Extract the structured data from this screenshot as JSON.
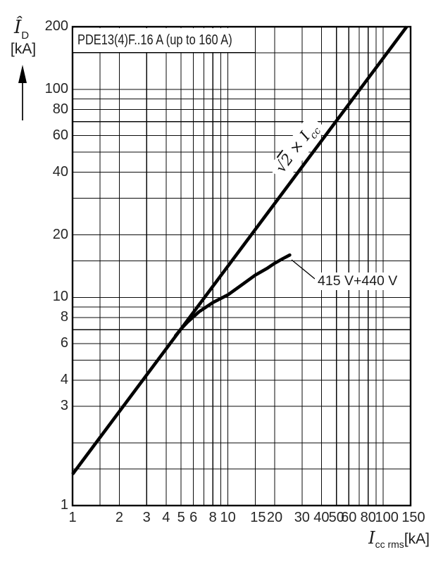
{
  "title": "PDE13(4)F..16 A (up to 160 A)",
  "axes": {
    "y": {
      "symbol": "Î",
      "symbol_sub": "D",
      "unit": "[kA]"
    },
    "x": {
      "symbol": "I",
      "symbol_sub": "cc rms",
      "unit": "[kA]"
    }
  },
  "annotations": {
    "sqrt2_label": {
      "root": "√",
      "radicand": "2",
      "operator": " × ",
      "symbol": "I",
      "symbol_sub": "cc"
    },
    "curve_label": "415 V+440 V"
  },
  "chart_data": {
    "type": "line",
    "title": "PDE13(4)F..16 A (up to 160 A)",
    "xlabel": "Icc rms [kA]",
    "ylabel": "ÎD [kA]",
    "x_scale": "log",
    "y_scale": "log",
    "xlim": [
      1,
      150
    ],
    "ylim": [
      1,
      200
    ],
    "grid": true,
    "x_gridlines": [
      1,
      1.5,
      2,
      3,
      4,
      5,
      6,
      7,
      8,
      9,
      10,
      15,
      20,
      30,
      40,
      50,
      60,
      70,
      80,
      90,
      100,
      150
    ],
    "y_gridlines": [
      1,
      1.5,
      2,
      3,
      4,
      5,
      6,
      7,
      8,
      9,
      10,
      15,
      20,
      30,
      40,
      50,
      60,
      70,
      80,
      90,
      100,
      150,
      200
    ],
    "x_tick_values": [
      1,
      2,
      3,
      4,
      5,
      6,
      8,
      10,
      15,
      20,
      30,
      40,
      50,
      60,
      80,
      100,
      150
    ],
    "x_tick_labels": [
      "1",
      "2",
      "3",
      "4",
      "5",
      "6",
      "8",
      "10",
      "15",
      "20",
      "30",
      "40",
      "50",
      "60",
      "80",
      "100",
      "150"
    ],
    "y_tick_values": [
      200,
      100,
      80,
      60,
      40,
      20,
      10,
      8,
      6,
      4,
      3,
      1
    ],
    "y_tick_labels": [
      "200",
      "100",
      "80",
      "60",
      "40",
      "20",
      "10",
      "8",
      "6",
      "4",
      "3",
      "1"
    ],
    "series": [
      {
        "name": "√2 × Icc",
        "points": [
          [
            1,
            1.4142
          ],
          [
            141.42,
            200
          ]
        ]
      },
      {
        "name": "415 V+440 V",
        "points": [
          [
            4.6,
            6.55
          ],
          [
            5,
            7.07
          ],
          [
            5.5,
            7.62
          ],
          [
            6.5,
            8.52
          ],
          [
            8,
            9.45
          ],
          [
            10,
            10.3
          ],
          [
            12,
            11.35
          ],
          [
            15,
            12.8
          ],
          [
            18,
            13.85
          ],
          [
            20,
            14.6
          ],
          [
            22.5,
            15.35
          ],
          [
            25,
            16
          ]
        ]
      }
    ],
    "colors": {
      "line": "#000000",
      "grid": "#0a0a0a",
      "background": "#ffffff",
      "text": "#262626"
    }
  }
}
